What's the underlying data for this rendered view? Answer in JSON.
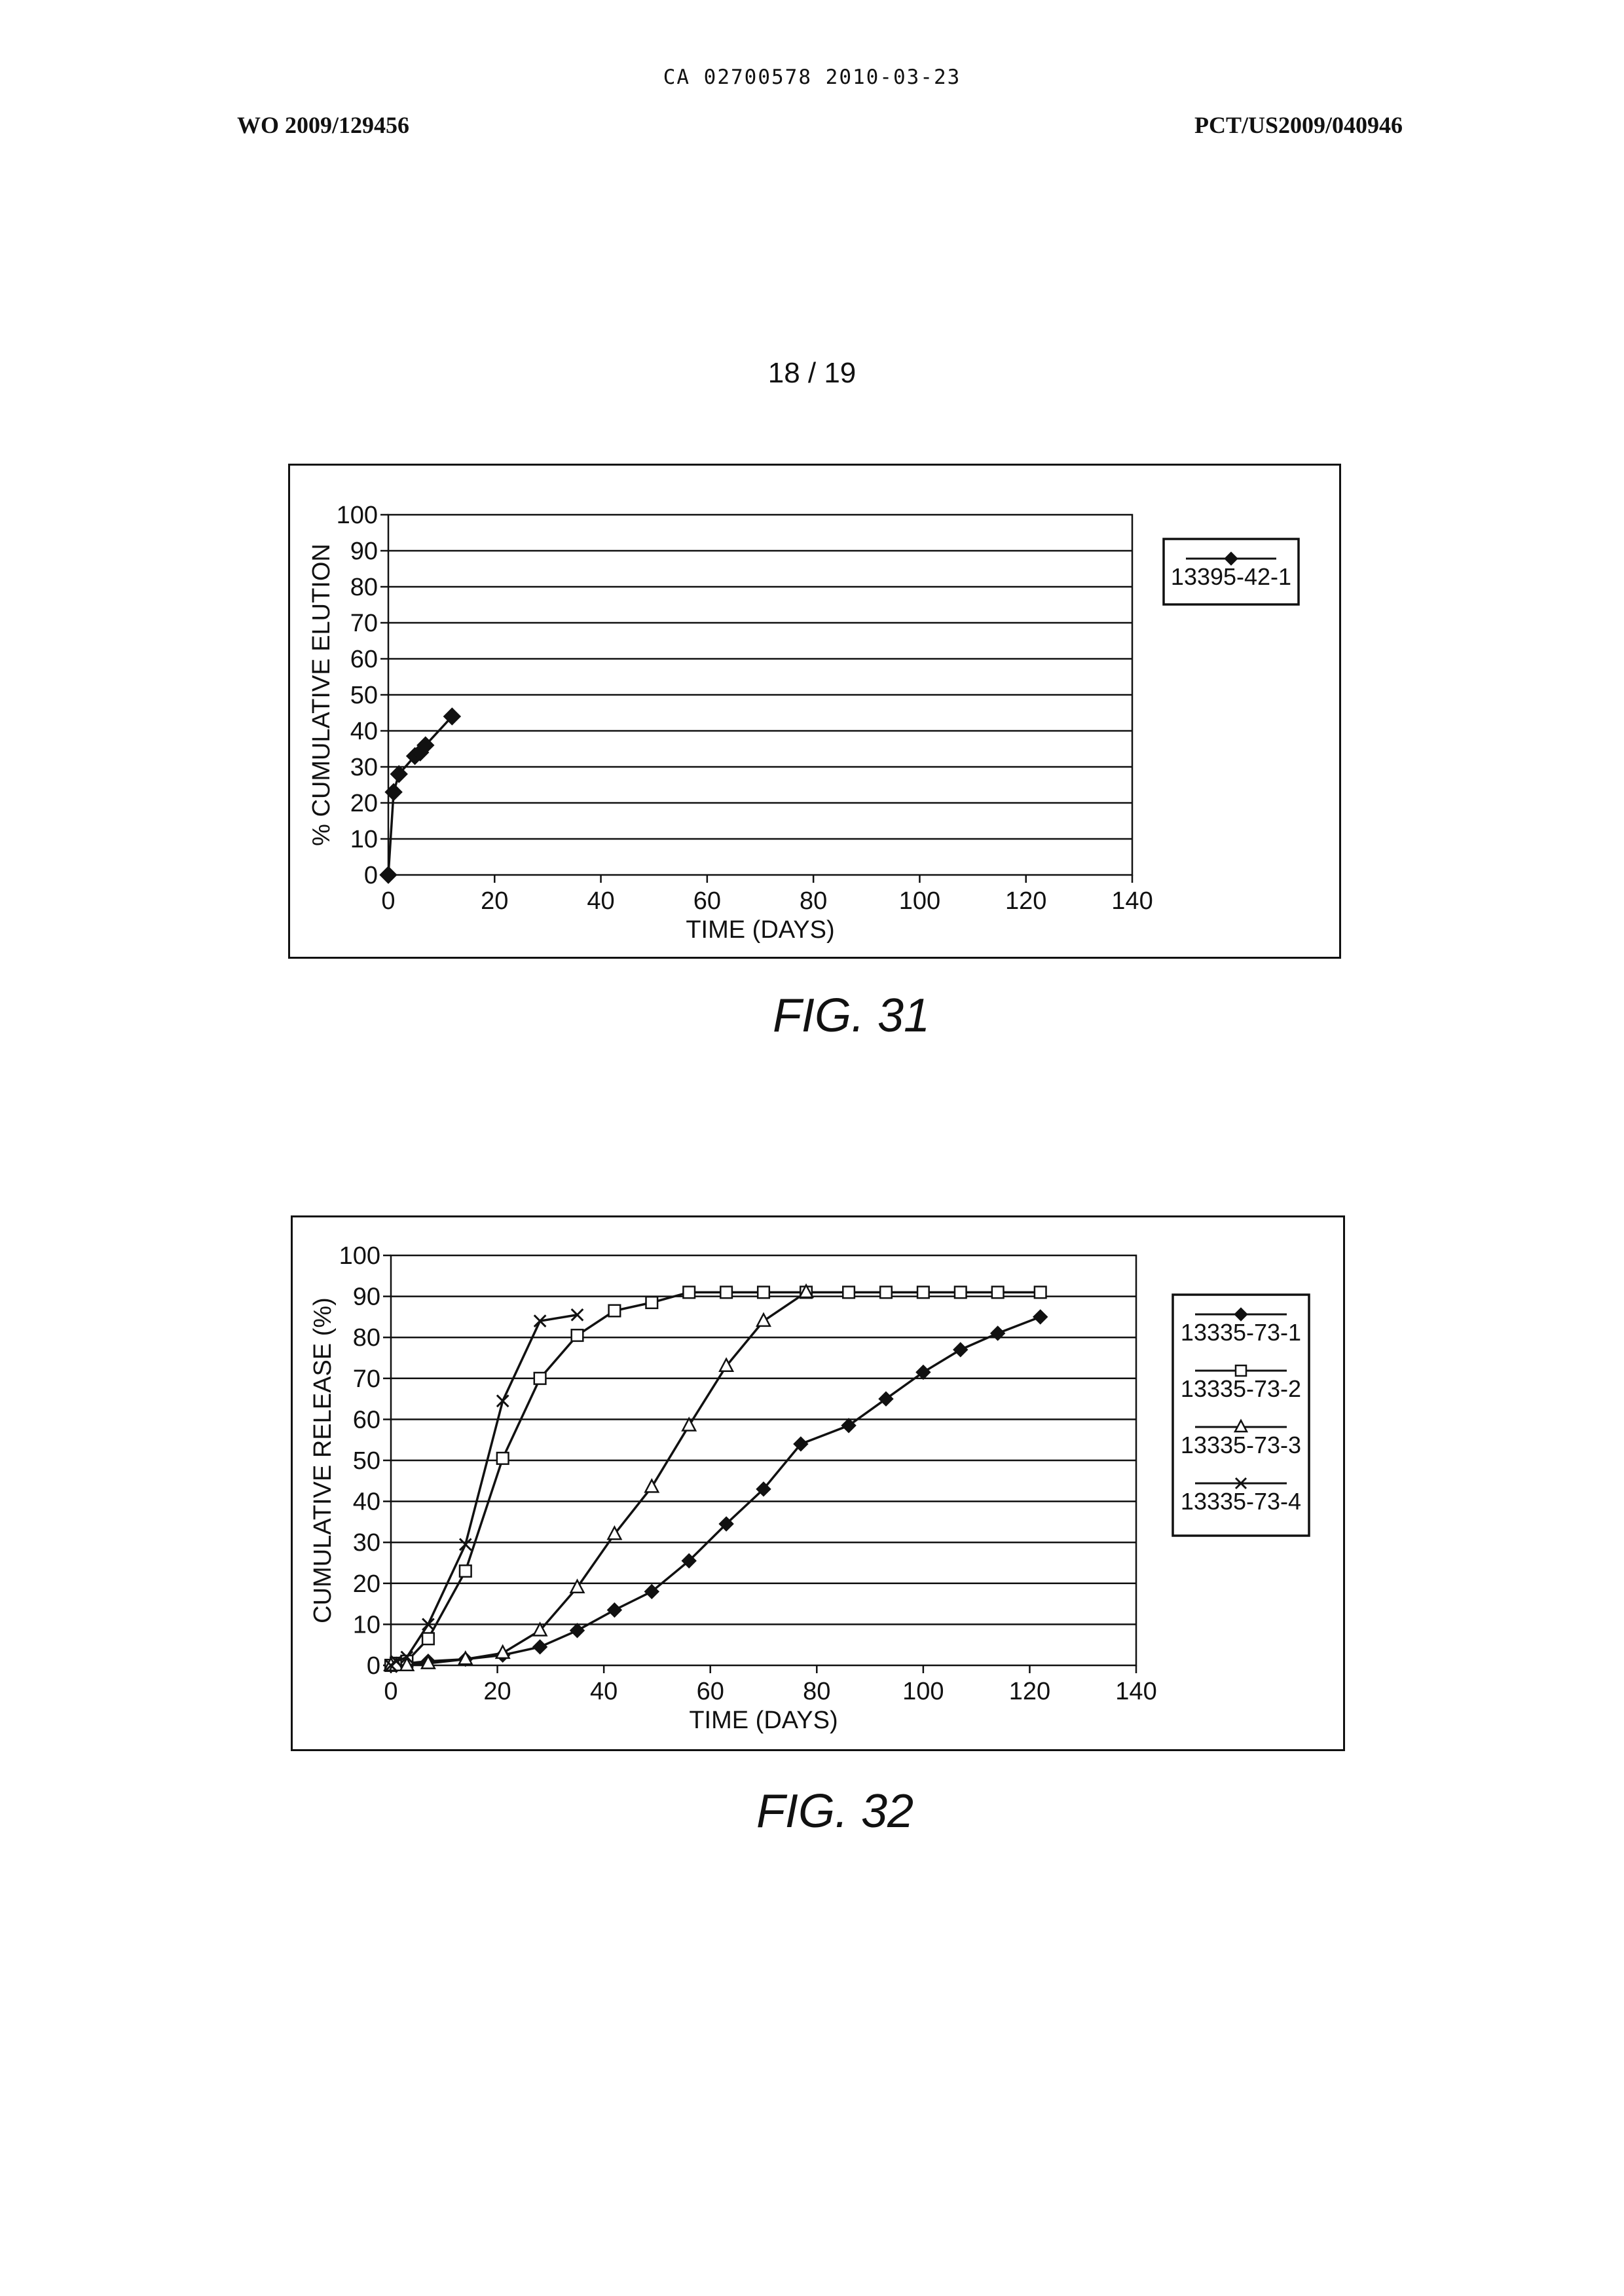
{
  "header": {
    "center": "CA 02700578 2010-03-23",
    "left": "WO 2009/129456",
    "right": "PCT/US2009/040946"
  },
  "sheet_number": "18 / 19",
  "captions": {
    "fig31": "FIG. 31",
    "fig32": "FIG. 32"
  },
  "chart_data": [
    {
      "type": "line",
      "xlabel": "TIME (DAYS)",
      "ylabel": "% CUMULATIVE ELUTION",
      "xlim": [
        0,
        140
      ],
      "ylim": [
        0,
        100
      ],
      "xticks": [
        0,
        20,
        40,
        60,
        80,
        100,
        120,
        140
      ],
      "yticks": [
        0,
        10,
        20,
        30,
        40,
        50,
        60,
        70,
        80,
        90,
        100
      ],
      "grid": "horizontal",
      "legend_position": "right",
      "series": [
        {
          "name": "13395-42-1",
          "marker": "diamond-filled",
          "x": [
            0,
            1,
            2,
            5,
            6,
            7,
            12
          ],
          "y": [
            0,
            23,
            28,
            33,
            34,
            36,
            44
          ]
        }
      ]
    },
    {
      "type": "line",
      "xlabel": "TIME (DAYS)",
      "ylabel": "CUMULATIVE RELEASE (%)",
      "xlim": [
        0,
        140
      ],
      "ylim": [
        0,
        100
      ],
      "xticks": [
        0,
        20,
        40,
        60,
        80,
        100,
        120,
        140
      ],
      "yticks": [
        0,
        10,
        20,
        30,
        40,
        50,
        60,
        70,
        80,
        90,
        100
      ],
      "grid": "horizontal",
      "legend_position": "right",
      "series": [
        {
          "name": "13335-73-1",
          "marker": "diamond-filled",
          "x": [
            0,
            1,
            3,
            7,
            14,
            21,
            28,
            35,
            42,
            49,
            56,
            63,
            70,
            77,
            86,
            93,
            100,
            107,
            114,
            122
          ],
          "y": [
            0,
            0,
            0.5,
            1,
            1.5,
            2.5,
            4.5,
            8.5,
            13.5,
            18,
            25.5,
            34.5,
            43,
            54,
            58.5,
            65,
            71.5,
            77,
            81,
            85
          ]
        },
        {
          "name": "13335-73-2",
          "marker": "square-open",
          "x": [
            0,
            1,
            3,
            7,
            14,
            21,
            28,
            35,
            42,
            49,
            56,
            63,
            70,
            78,
            86,
            93,
            100,
            107,
            114,
            122
          ],
          "y": [
            0,
            0.5,
            1,
            6.5,
            23,
            50.5,
            70,
            80.5,
            86.5,
            88.5,
            91,
            91,
            91,
            91,
            91,
            91,
            91,
            91,
            91,
            91
          ]
        },
        {
          "name": "13335-73-3",
          "marker": "triangle-open",
          "x": [
            0,
            1,
            3,
            7,
            14,
            21,
            28,
            35,
            42,
            49,
            56,
            63,
            70,
            78
          ],
          "y": [
            0,
            0,
            0,
            0.5,
            1.5,
            3,
            8.5,
            19,
            32,
            43.5,
            58.5,
            73,
            84,
            91
          ]
        },
        {
          "name": "13335-73-4",
          "marker": "x",
          "x": [
            0,
            1,
            3,
            7,
            14,
            21,
            28,
            35
          ],
          "y": [
            0,
            1,
            2,
            10,
            29.5,
            64.5,
            84,
            85.5
          ]
        }
      ]
    }
  ]
}
